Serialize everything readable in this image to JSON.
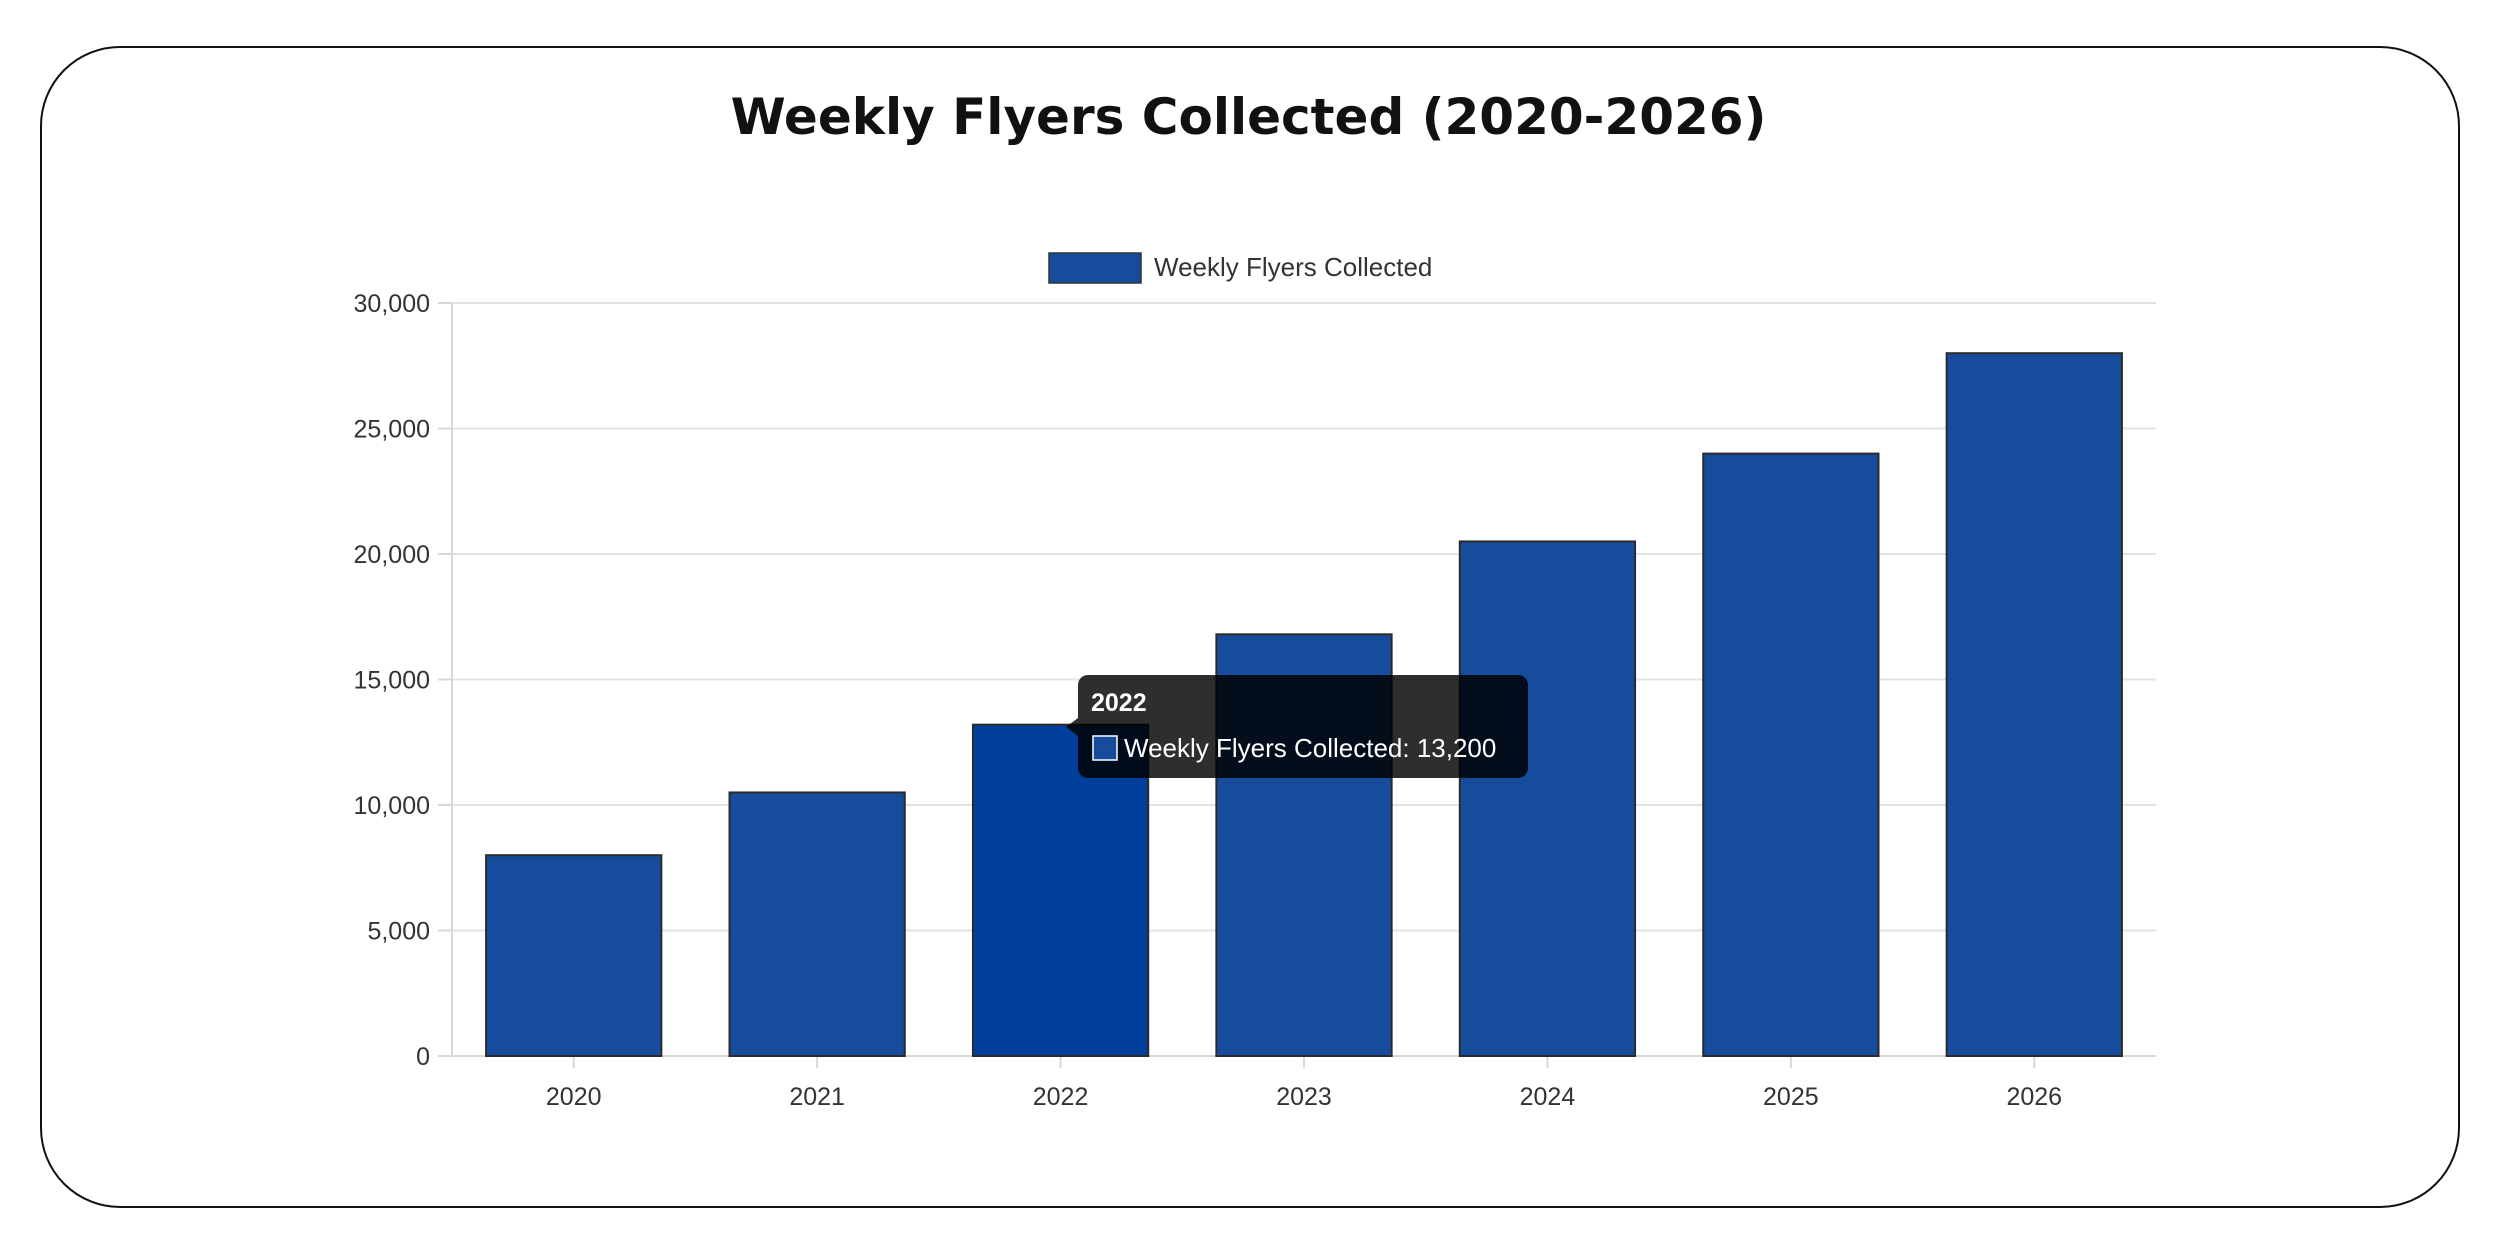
{
  "chart_data": {
    "type": "bar",
    "title": "Weekly Flyers Collected (2020-2026)",
    "categories": [
      "2020",
      "2021",
      "2022",
      "2023",
      "2024",
      "2025",
      "2026"
    ],
    "series": [
      {
        "name": "Weekly Flyers Collected",
        "values": [
          8000,
          10500,
          13200,
          16800,
          20500,
          24000,
          28000
        ]
      }
    ],
    "ylim": [
      0,
      30000
    ],
    "yticks": [
      "0",
      "5,000",
      "10,000",
      "15,000",
      "20,000",
      "25,000",
      "30,000"
    ],
    "grid": true,
    "legend_position": "top",
    "bar_color": "#164c9b",
    "highlight_color": "#003f9c",
    "highlight_index": 2,
    "tooltip": {
      "title": "2022",
      "text": "Weekly Flyers Collected: 13,200"
    }
  }
}
